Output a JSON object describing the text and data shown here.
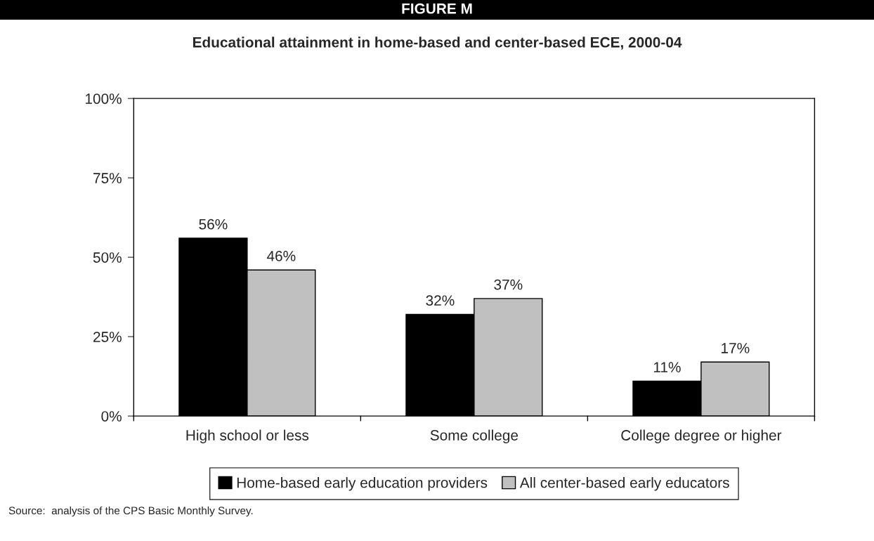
{
  "chart_data": {
    "type": "bar",
    "title": "FIGURE M",
    "subtitle": "Educational attainment in home-based and center-based ECE, 2000-04",
    "categories": [
      "High school or less",
      "Some college",
      "College degree or higher"
    ],
    "series": [
      {
        "name": "Home-based early education providers",
        "color": "#000000",
        "values": [
          56,
          32,
          11
        ],
        "value_labels": [
          "56%",
          "32%",
          "11%"
        ]
      },
      {
        "name": "All center-based early educators",
        "color": "#c0c0c0",
        "values": [
          46,
          37,
          17
        ],
        "value_labels": [
          "46%",
          "37%",
          "17%"
        ]
      }
    ],
    "ylim": [
      0,
      100
    ],
    "yticks": [
      {
        "value": 0,
        "label": "0%"
      },
      {
        "value": 25,
        "label": "25%"
      },
      {
        "value": 50,
        "label": "50%"
      },
      {
        "value": 75,
        "label": "75%"
      },
      {
        "value": 100,
        "label": "100%"
      }
    ],
    "grid": false,
    "legend": "bottom",
    "annotations": [
      "Source:  analysis of the CPS Basic Monthly Survey."
    ]
  }
}
